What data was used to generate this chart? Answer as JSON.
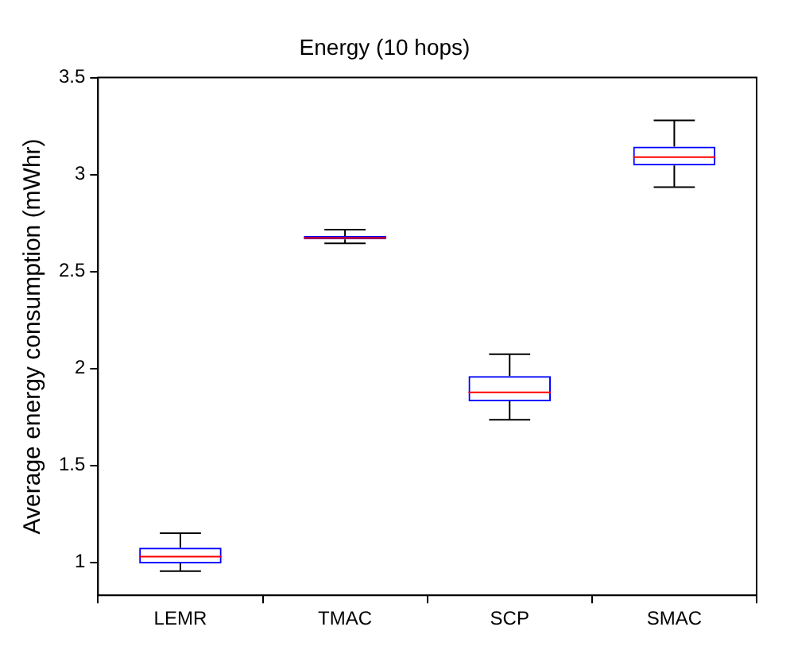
{
  "chart_data": {
    "type": "box",
    "title": "Energy (10 hops)",
    "ylabel": "Average energy consumption (mWhr)",
    "categories": [
      "LEMR",
      "TMAC",
      "SCP",
      "SMAC"
    ],
    "color": "#0000ff",
    "boxes": [
      {
        "low": 0.955,
        "q1": 0.995,
        "median": 1.03,
        "q3": 1.076,
        "high": 1.15
      },
      {
        "low": 2.645,
        "q1": 2.666,
        "median": 2.673,
        "q3": 2.683,
        "high": 2.716
      },
      {
        "low": 1.735,
        "q1": 1.831,
        "median": 1.877,
        "q3": 1.961,
        "high": 2.073
      },
      {
        "low": 2.935,
        "q1": 3.047,
        "median": 3.09,
        "q3": 3.144,
        "high": 3.279
      }
    ],
    "ylim": [
      0.83,
      3.5
    ],
    "yticks": [
      1,
      1.5,
      2,
      2.5,
      3,
      3.5
    ],
    "grid": false,
    "legend": false
  }
}
